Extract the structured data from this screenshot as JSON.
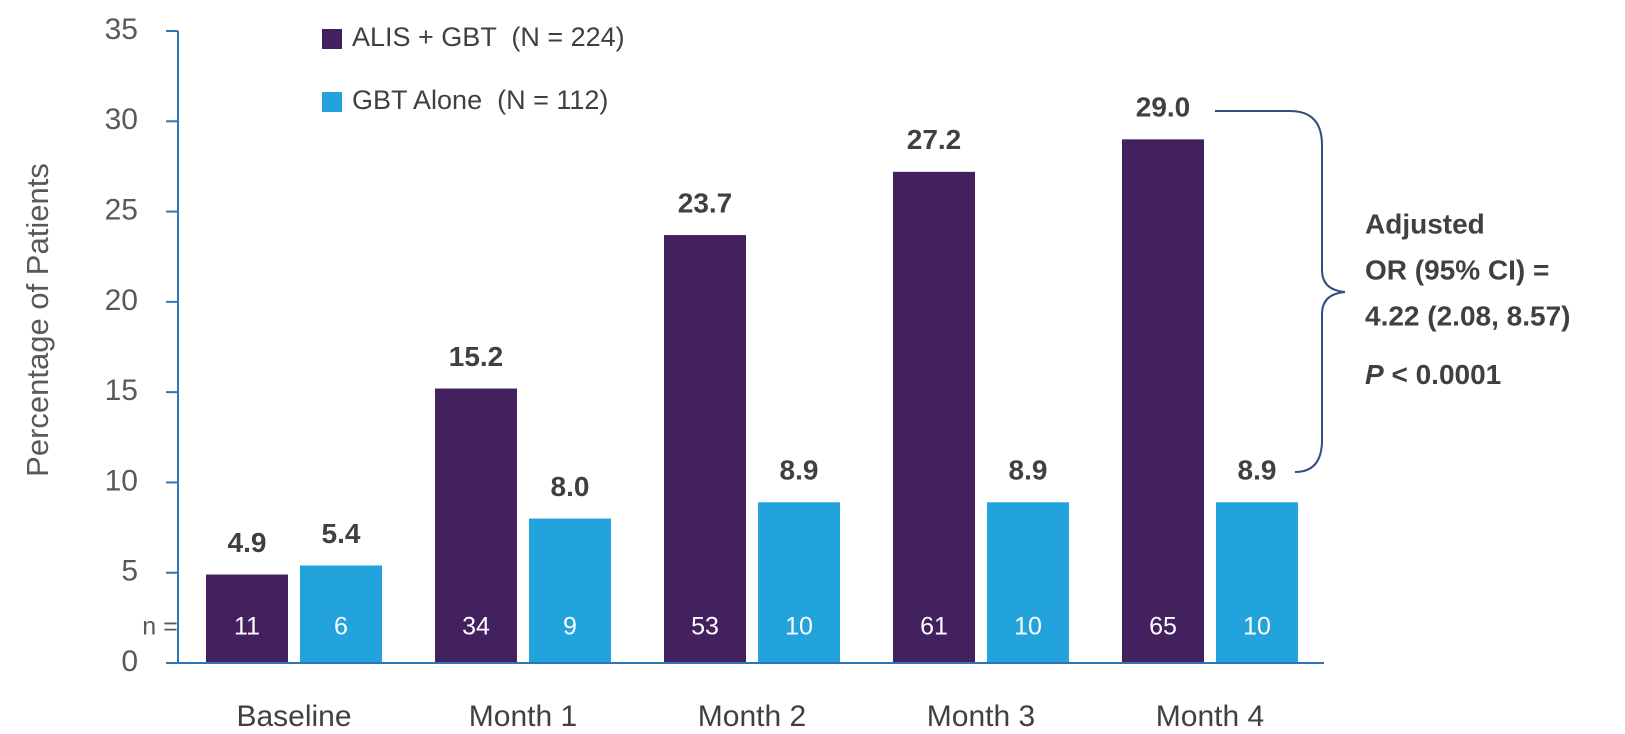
{
  "chart_data": {
    "type": "bar",
    "y_label": "Percentage of Patients",
    "categories": [
      "Baseline",
      "Month 1",
      "Month 2",
      "Month 3",
      "Month 4"
    ],
    "series": [
      {
        "name": "ALIS + GBT  (N = 224)",
        "color": "#43215f",
        "values": [
          4.9,
          15.2,
          23.7,
          27.2,
          29.0
        ],
        "value_labels": [
          "4.9",
          "15.2",
          "23.7",
          "27.2",
          "29.0"
        ],
        "n": [
          11,
          34,
          53,
          61,
          65
        ]
      },
      {
        "name": "GBT Alone  (N = 112)",
        "color": "#23a3dc",
        "values": [
          5.4,
          8.0,
          8.9,
          8.9,
          8.9
        ],
        "value_labels": [
          "5.4",
          "8.0",
          "8.9",
          "8.9",
          "8.9"
        ],
        "n": [
          6,
          9,
          10,
          10,
          10
        ]
      }
    ],
    "n_label": "n =",
    "ylim": [
      0,
      35
    ],
    "yticks": [
      0,
      5,
      10,
      15,
      20,
      25,
      30,
      35
    ],
    "annotation": {
      "lines": [
        "Adjusted",
        "OR (95% CI) =",
        "4.22 (2.08, 8.57)"
      ],
      "p_symbol": "P",
      "p_text": " < 0.0001"
    }
  }
}
